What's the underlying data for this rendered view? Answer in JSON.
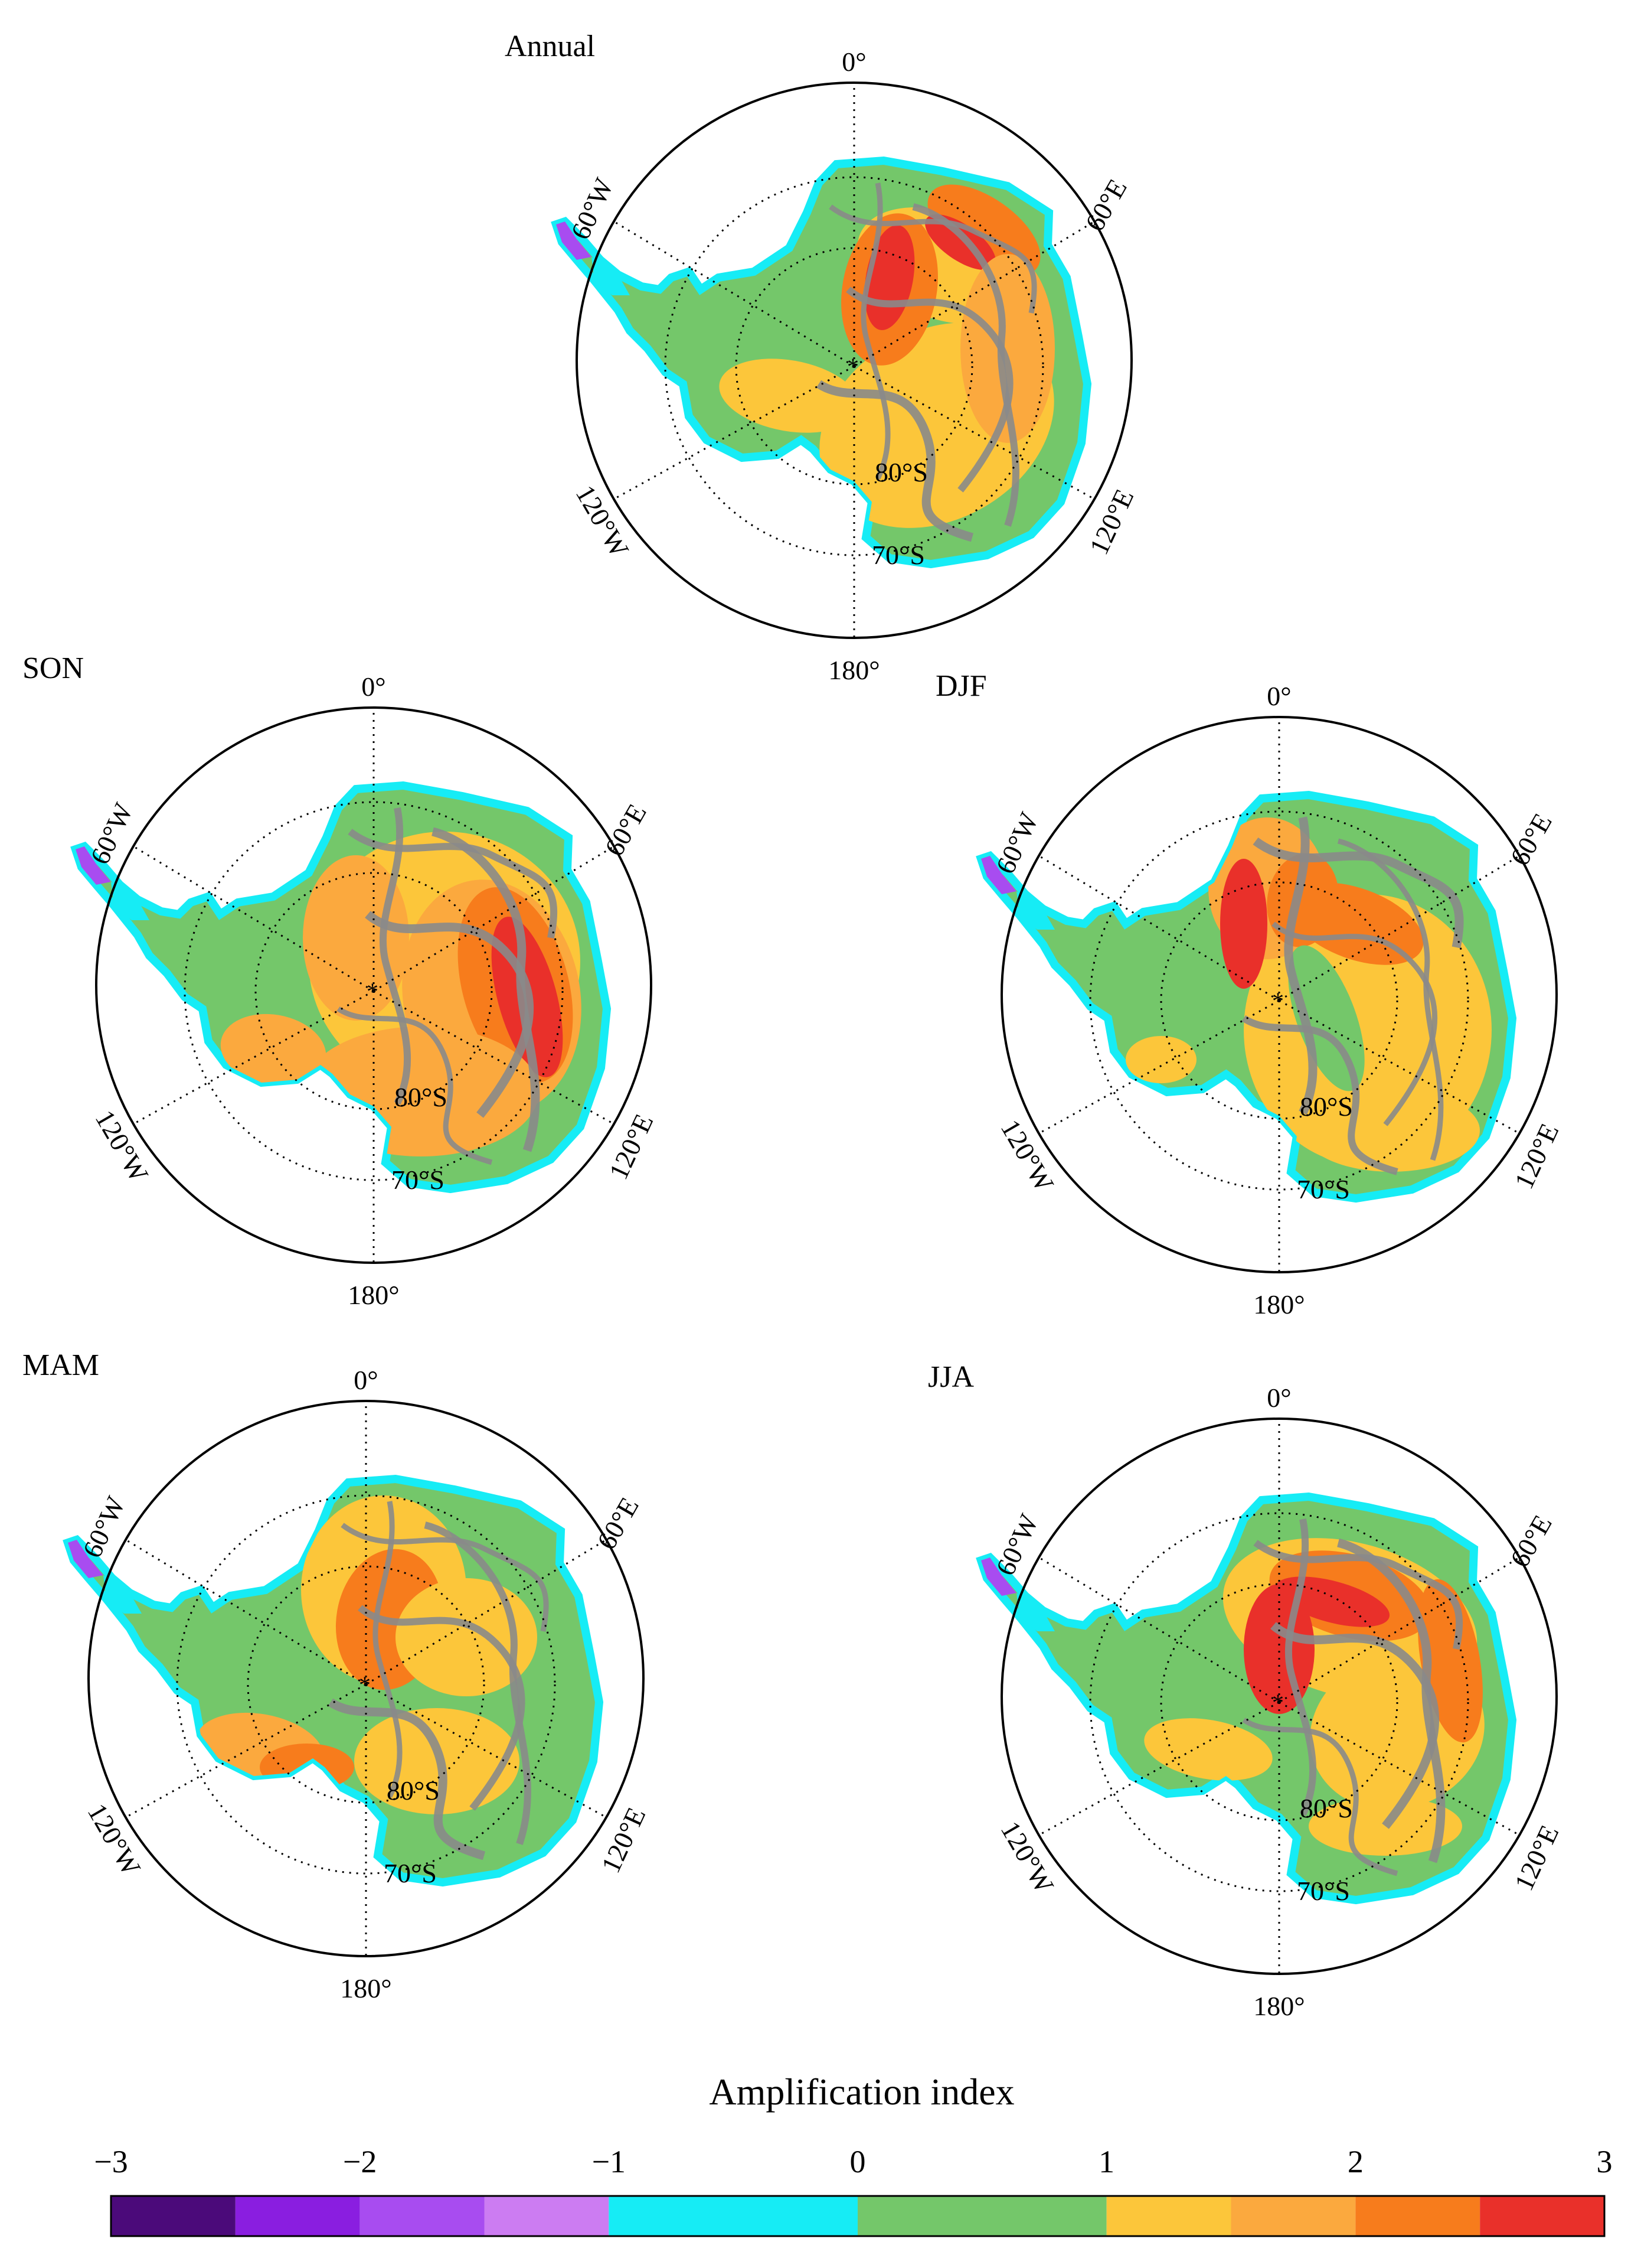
{
  "panels": [
    {
      "id": "annual",
      "title": "Annual",
      "pattern": "annual"
    },
    {
      "id": "son",
      "title": "SON",
      "pattern": "son"
    },
    {
      "id": "djf",
      "title": "DJF",
      "pattern": "djf"
    },
    {
      "id": "mam",
      "title": "MAM",
      "pattern": "mam"
    },
    {
      "id": "jja",
      "title": "JJA",
      "pattern": "jja"
    }
  ],
  "map_labels": {
    "lon_0": "0°",
    "lon_60E": "60°E",
    "lon_120E": "120°E",
    "lon_180": "180°",
    "lon_120W": "120°W",
    "lon_60W": "60°W",
    "lat_80S": "80°S",
    "lat_70S": "70°S"
  },
  "colorbar": {
    "title": "Amplification index",
    "tick_labels": [
      "−3",
      "−2",
      "−1",
      "0",
      "1",
      "2",
      "3"
    ],
    "bins": [
      {
        "from": -3,
        "to": -2.5,
        "color": "#4b0a7a"
      },
      {
        "from": -2.5,
        "to": -2,
        "color": "#8a1ee0"
      },
      {
        "from": -2,
        "to": -1.5,
        "color": "#a84cf0"
      },
      {
        "from": -1.5,
        "to": -1,
        "color": "#cc7cf2"
      },
      {
        "from": -1,
        "to": 0,
        "color": "#16ecf5"
      },
      {
        "from": 0,
        "to": 1,
        "color": "#74c76a"
      },
      {
        "from": 1,
        "to": 1.5,
        "color": "#fcc63a"
      },
      {
        "from": 1.5,
        "to": 2,
        "color": "#fba93e"
      },
      {
        "from": 2,
        "to": 2.5,
        "color": "#f77c1c"
      },
      {
        "from": 2.5,
        "to": 3,
        "color": "#e9302a"
      }
    ]
  },
  "colors": {
    "contour_gray": "#8a8a8a",
    "peninsula_purple": "#a84cf0",
    "coast_cyan": "#16ecf5",
    "green": "#74c76a"
  }
}
